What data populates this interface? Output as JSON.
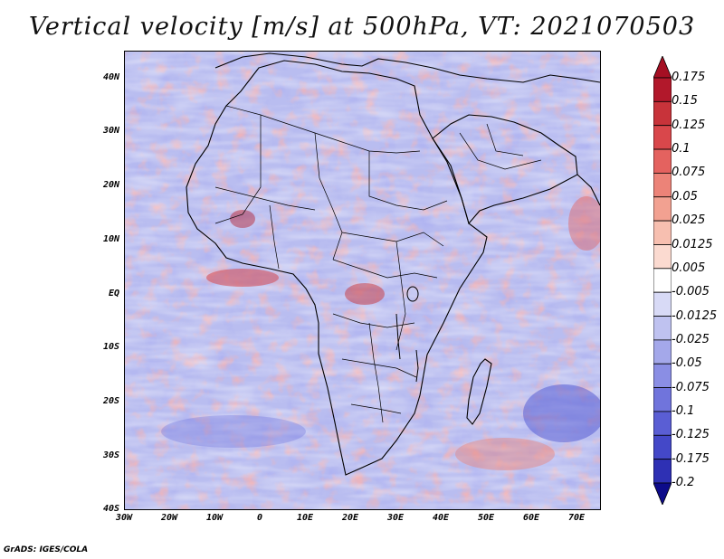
{
  "title": "Vertical velocity [m/s] at 500hPa, VT: 2021070503",
  "footer": "GrADS: IGES/COLA",
  "map": {
    "lat_ticks": [
      "40N",
      "30N",
      "20N",
      "10N",
      "EQ",
      "10S",
      "20S",
      "30S",
      "40S"
    ],
    "lon_ticks": [
      "30W",
      "20W",
      "10W",
      "0",
      "10E",
      "20E",
      "30E",
      "40E",
      "50E",
      "60E",
      "70E"
    ],
    "extent": {
      "lon_min": -30,
      "lon_max": 75,
      "lat_min": -40,
      "lat_max": 45
    }
  },
  "colorbar": {
    "labels": [
      "0.175",
      "0.15",
      "0.125",
      "0.1",
      "0.075",
      "0.05",
      "0.025",
      "0.0125",
      "0.005",
      "-0.005",
      "-0.0125",
      "-0.025",
      "-0.05",
      "-0.075",
      "-0.1",
      "-0.125",
      "-0.175",
      "-0.2"
    ],
    "colors": [
      "#b2182b",
      "#c8333a",
      "#d9474b",
      "#e4625f",
      "#ec8378",
      "#f2a191",
      "#f7bfb0",
      "#fbdad0",
      "#ffffff",
      "#d8daf6",
      "#bfc2f0",
      "#a4a8ea",
      "#8a8ee4",
      "#7074dc",
      "#5a5ed4",
      "#4448c8",
      "#2e30b4",
      "#1c1ca0"
    ],
    "top_color": "#a50f23",
    "bottom_color": "#0d0b8a"
  }
}
